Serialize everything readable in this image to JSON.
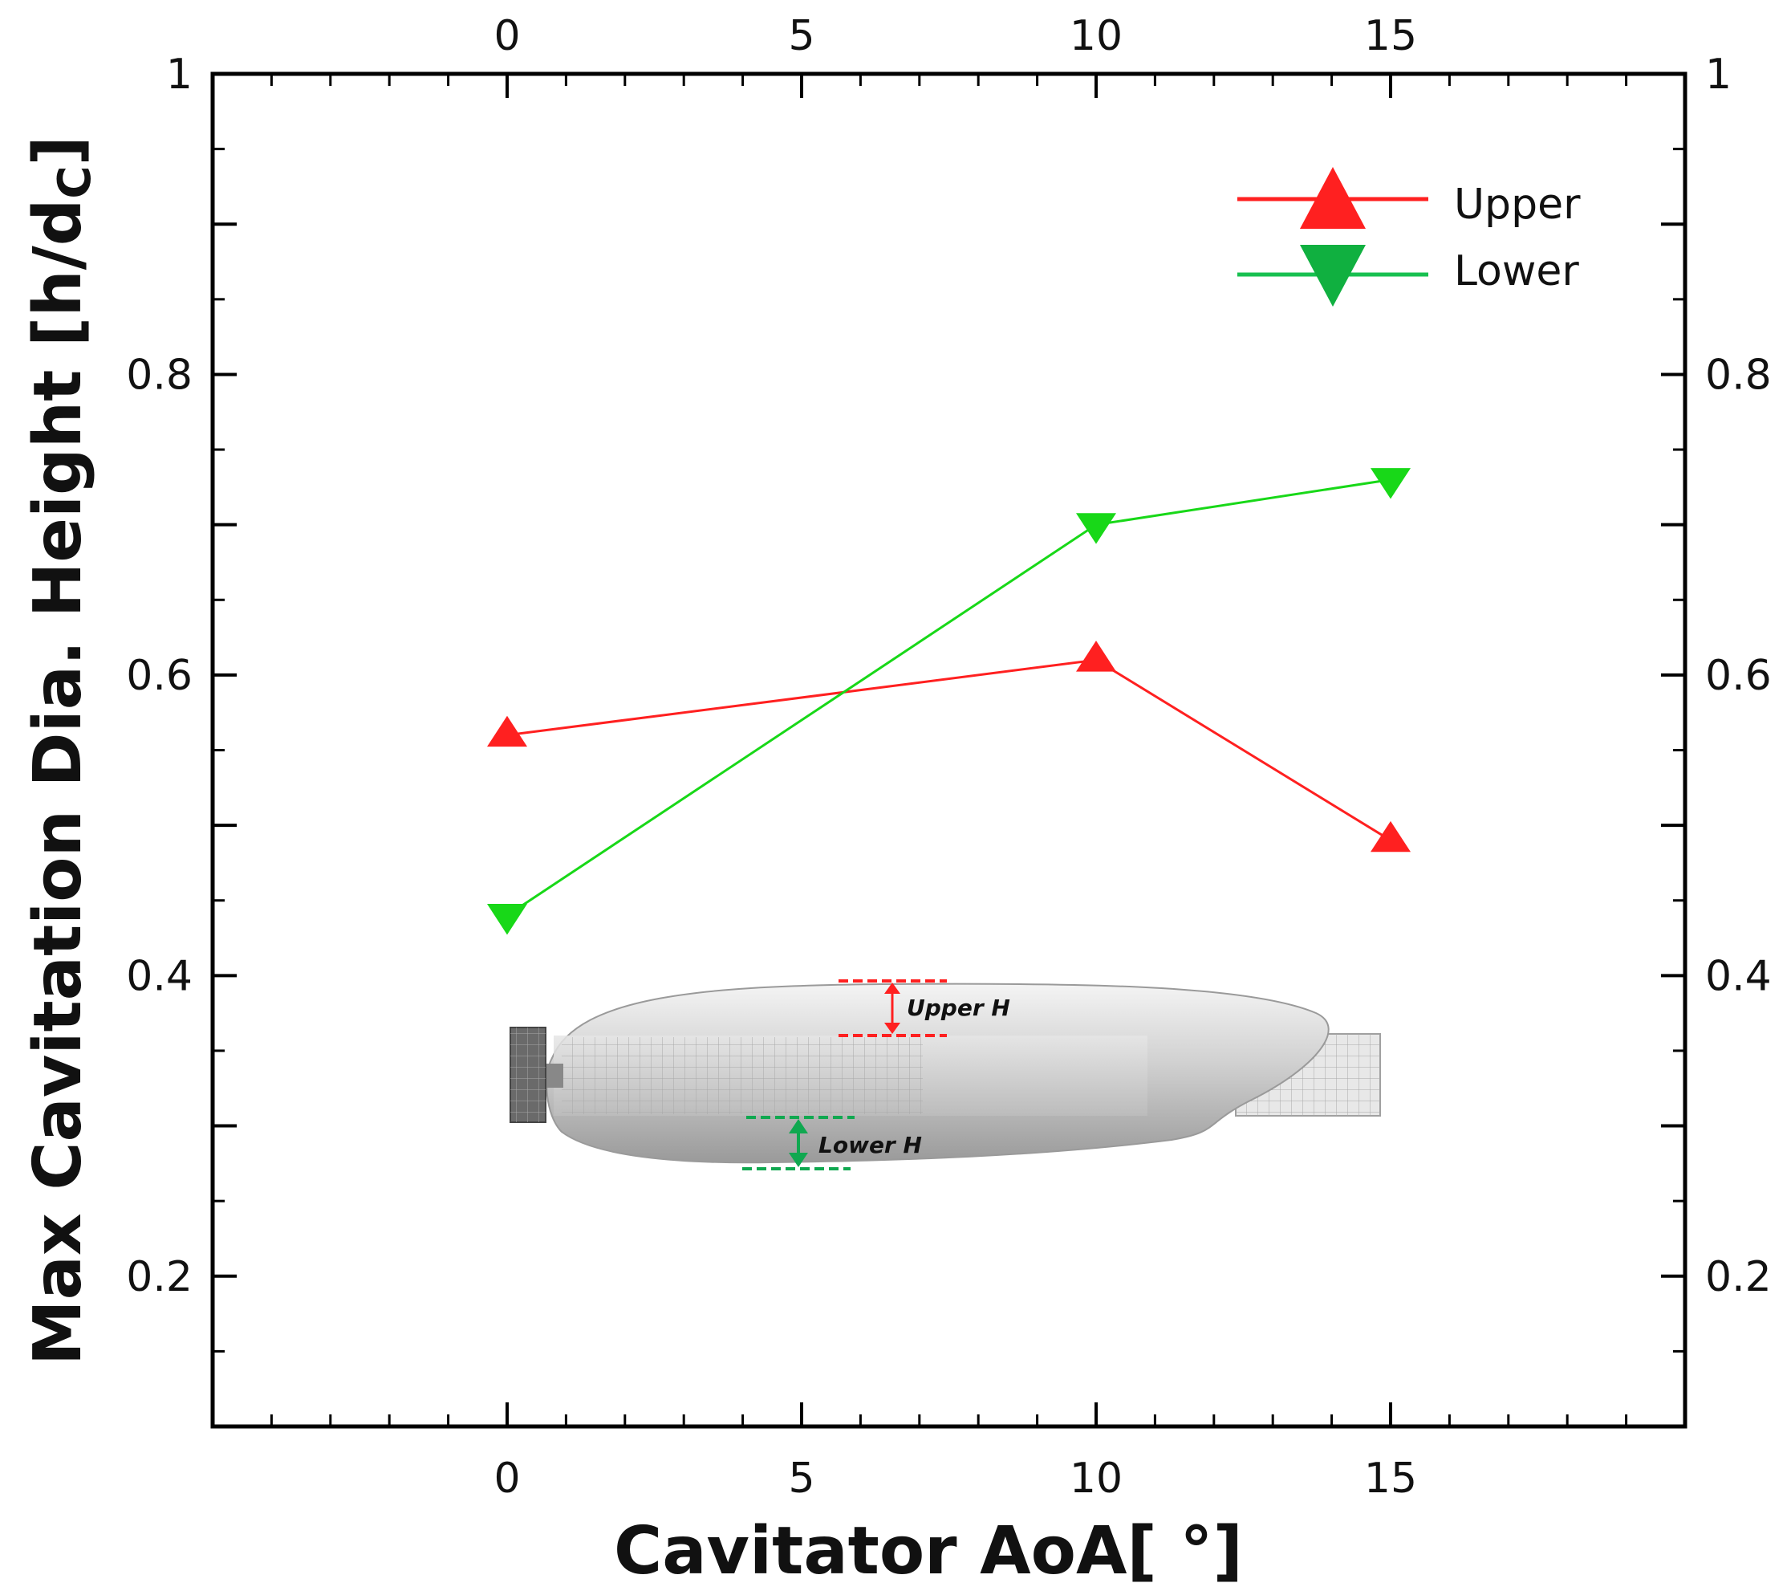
{
  "chart_data": {
    "type": "line",
    "title": "",
    "xlabel": "Cavitator AoA[ °]",
    "ylabel_main": "Max Cavitation Dia. Height [h/d",
    "ylabel_sub": "C",
    "ylabel_close": "]",
    "xlim": [
      -5,
      20
    ],
    "ylim": [
      0.1,
      1.0
    ],
    "x_ticks": [
      0,
      5,
      10,
      15
    ],
    "x_tick_labels": [
      "0",
      "5",
      "10",
      "15"
    ],
    "y_ticks": [
      0.2,
      0.4,
      0.6,
      0.8,
      1.0
    ],
    "y_tick_labels": [
      "0.2",
      "0.4",
      "0.6",
      "0.8",
      "1"
    ],
    "grid": false,
    "legend_position": "top-right",
    "series": [
      {
        "name": "Upper",
        "x": [
          0,
          10,
          15
        ],
        "values": [
          0.56,
          0.61,
          0.49
        ],
        "color": "#ff2020",
        "marker": "triangle-up"
      },
      {
        "name": "Lower",
        "x": [
          0,
          10,
          15
        ],
        "values": [
          0.44,
          0.7,
          0.73
        ],
        "color": "#18d818",
        "marker": "triangle-down"
      }
    ],
    "inset": {
      "upper_label": "Upper H",
      "lower_label": "Lower H",
      "upper_color": "#ff2020",
      "lower_color": "#10a850"
    }
  }
}
